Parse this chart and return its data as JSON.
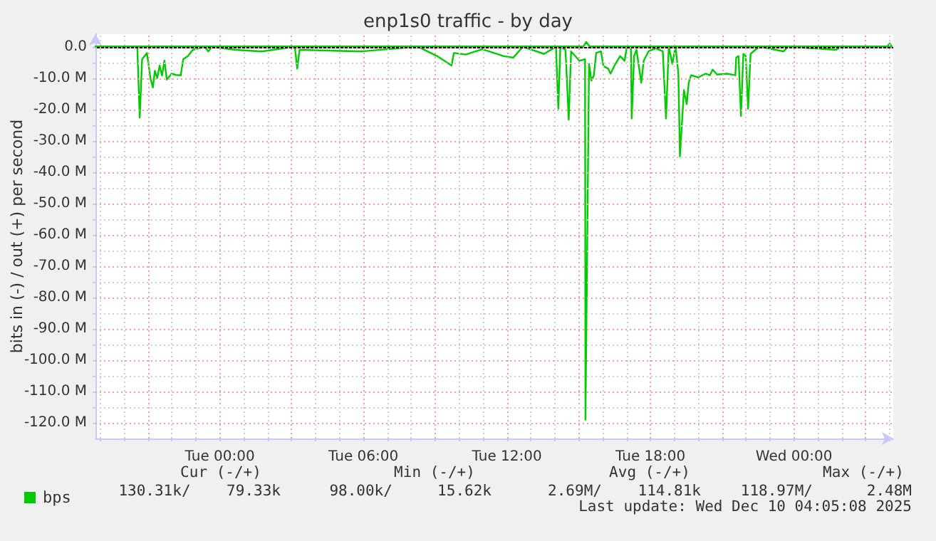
{
  "chart_data": {
    "type": "line",
    "title": "enp1s0 traffic - by day",
    "ylabel": "bits in (-) / out (+) per second",
    "x": [
      "2025-12-08T18:48",
      "2025-12-08T20:00",
      "2025-12-08T20:33",
      "2025-12-08T20:39",
      "2025-12-08T20:45",
      "2025-12-08T20:57",
      "2025-12-08T21:06",
      "2025-12-08T21:12",
      "2025-12-08T21:17",
      "2025-12-08T21:23",
      "2025-12-08T21:29",
      "2025-12-08T21:35",
      "2025-12-08T21:41",
      "2025-12-08T21:47",
      "2025-12-08T21:59",
      "2025-12-08T22:10",
      "2025-12-08T22:22",
      "2025-12-08T22:28",
      "2025-12-08T22:40",
      "2025-12-08T22:52",
      "2025-12-08T23:22",
      "2025-12-08T23:31",
      "2025-12-08T23:40",
      "2025-12-09T00:39",
      "2025-12-09T01:45",
      "2025-12-09T03:08",
      "2025-12-09T03:14",
      "2025-12-09T03:20",
      "2025-12-09T05:55",
      "2025-12-09T08:17",
      "2025-12-09T09:05",
      "2025-12-09T09:41",
      "2025-12-09T09:47",
      "2025-12-09T10:17",
      "2025-12-09T10:58",
      "2025-12-09T11:40",
      "2025-12-09T11:52",
      "2025-12-09T12:16",
      "2025-12-09T12:40",
      "2025-12-09T13:33",
      "2025-12-09T14:03",
      "2025-12-09T14:09",
      "2025-12-09T14:14",
      "2025-12-09T14:27",
      "2025-12-09T14:35",
      "2025-12-09T14:41",
      "2025-12-09T15:02",
      "2025-12-09T15:16",
      "2025-12-09T15:17",
      "2025-12-09T15:26",
      "2025-12-09T15:32",
      "2025-12-09T15:38",
      "2025-12-09T15:44",
      "2025-12-09T15:56",
      "2025-12-09T16:02",
      "2025-12-09T16:14",
      "2025-12-09T16:20",
      "2025-12-09T16:32",
      "2025-12-09T16:44",
      "2025-12-09T16:55",
      "2025-12-09T17:01",
      "2025-12-09T17:11",
      "2025-12-09T17:13",
      "2025-12-09T17:19",
      "2025-12-09T17:25",
      "2025-12-09T17:37",
      "2025-12-09T17:43",
      "2025-12-09T17:55",
      "2025-12-09T18:13",
      "2025-12-09T18:31",
      "2025-12-09T18:39",
      "2025-12-09T18:46",
      "2025-12-09T18:55",
      "2025-12-09T19:03",
      "2025-12-09T19:10",
      "2025-12-09T19:14",
      "2025-12-09T19:24",
      "2025-12-09T19:31",
      "2025-12-09T19:36",
      "2025-12-09T19:42",
      "2025-12-09T20:00",
      "2025-12-09T20:18",
      "2025-12-09T20:29",
      "2025-12-09T20:36",
      "2025-12-09T20:47",
      "2025-12-09T21:11",
      "2025-12-09T21:33",
      "2025-12-09T21:35",
      "2025-12-09T21:41",
      "2025-12-09T21:47",
      "2025-12-09T21:53",
      "2025-12-09T21:59",
      "2025-12-09T22:05",
      "2025-12-09T22:11",
      "2025-12-09T22:23",
      "2025-12-09T22:35",
      "2025-12-09T23:34",
      "2025-12-09T23:45",
      "2025-12-10T01:46",
      "2025-12-10T01:57",
      "2025-12-10T04:05"
    ],
    "series": [
      {
        "name": "bps",
        "color": "#00cc00",
        "values": [
          0,
          -0.3,
          0,
          -22.6,
          -4,
          -2,
          -10,
          -13,
          -7.7,
          -10,
          -6,
          -9.2,
          -4.4,
          -10.5,
          -8.6,
          -9,
          -9.1,
          -4,
          -3,
          -1,
          0,
          -1.5,
          0,
          -1,
          -1.5,
          0,
          -7,
          -1,
          -1.5,
          0,
          -3,
          -6,
          -2,
          -2.5,
          -0.8,
          -2.5,
          -3,
          -3.5,
          0,
          -2.3,
          0,
          -19.8,
          0,
          -1,
          -23.3,
          -1.5,
          -4.5,
          -4,
          -119,
          -5.5,
          -10.8,
          -9.2,
          -2,
          -1.5,
          -6.2,
          -7,
          -8.6,
          -5.5,
          -3,
          -4.5,
          0,
          -0.5,
          -22.9,
          -3,
          -1,
          -11.5,
          -4.5,
          -1.5,
          -0.5,
          -1.5,
          -22.9,
          0,
          -5.5,
          0,
          -8.6,
          -35,
          -13.8,
          -18.3,
          -11.5,
          -9.1,
          -9.8,
          -8.6,
          -9.1,
          -7.3,
          -8.9,
          -8.6,
          -9.1,
          -3.5,
          -3,
          -22.1,
          -2.3,
          -3,
          -19.8,
          -2.3,
          -1,
          0,
          -1.5,
          0,
          -1,
          0,
          0
        ]
      },
      {
        "color": "#00cc00",
        "x": [
          "2025-12-08T18:48",
          "2025-12-09T15:12",
          "2025-12-09T15:19",
          "2025-12-09T15:27",
          "2025-12-10T03:54",
          "2025-12-10T04:00",
          "2025-12-10T04:05"
        ],
        "values": [
          0.1,
          0.1,
          1.5,
          0.1,
          0.1,
          1.0,
          0.1
        ]
      }
    ],
    "xlim": [
      "2025-12-08T18:48",
      "2025-12-10T04:09"
    ],
    "xticks": [
      {
        "value": "2025-12-08T19:00",
        "label": null
      },
      {
        "value": "2025-12-08T20:00",
        "label": null
      },
      {
        "value": "2025-12-08T21:00",
        "label": null
      },
      {
        "value": "2025-12-08T22:00",
        "label": null
      },
      {
        "value": "2025-12-08T23:00",
        "label": null
      },
      {
        "value": "2025-12-09T00:00",
        "label": "Tue 00:00"
      },
      {
        "value": "2025-12-09T01:00",
        "label": null
      },
      {
        "value": "2025-12-09T02:00",
        "label": null
      },
      {
        "value": "2025-12-09T03:00",
        "label": null
      },
      {
        "value": "2025-12-09T04:00",
        "label": null
      },
      {
        "value": "2025-12-09T05:00",
        "label": null
      },
      {
        "value": "2025-12-09T06:00",
        "label": "Tue 06:00"
      },
      {
        "value": "2025-12-09T07:00",
        "label": null
      },
      {
        "value": "2025-12-09T08:00",
        "label": null
      },
      {
        "value": "2025-12-09T09:00",
        "label": null
      },
      {
        "value": "2025-12-09T10:00",
        "label": null
      },
      {
        "value": "2025-12-09T11:00",
        "label": null
      },
      {
        "value": "2025-12-09T12:00",
        "label": "Tue 12:00"
      },
      {
        "value": "2025-12-09T13:00",
        "label": null
      },
      {
        "value": "2025-12-09T14:00",
        "label": null
      },
      {
        "value": "2025-12-09T15:00",
        "label": null
      },
      {
        "value": "2025-12-09T16:00",
        "label": null
      },
      {
        "value": "2025-12-09T17:00",
        "label": null
      },
      {
        "value": "2025-12-09T18:00",
        "label": "Tue 18:00"
      },
      {
        "value": "2025-12-09T19:00",
        "label": null
      },
      {
        "value": "2025-12-09T20:00",
        "label": null
      },
      {
        "value": "2025-12-09T21:00",
        "label": null
      },
      {
        "value": "2025-12-09T22:00",
        "label": null
      },
      {
        "value": "2025-12-09T23:00",
        "label": null
      },
      {
        "value": "2025-12-10T00:00",
        "label": "Wed 00:00"
      },
      {
        "value": "2025-12-10T01:00",
        "label": null
      },
      {
        "value": "2025-12-10T02:00",
        "label": null
      },
      {
        "value": "2025-12-10T03:00",
        "label": null
      },
      {
        "value": "2025-12-10T04:00",
        "label": null
      }
    ],
    "ylim": [
      -125,
      4
    ],
    "yticks": [
      {
        "value": 0,
        "label": "0.0"
      },
      {
        "value": -5,
        "label": null
      },
      {
        "value": -10,
        "label": "-10.0 M"
      },
      {
        "value": -15,
        "label": null
      },
      {
        "value": -20,
        "label": "-20.0 M"
      },
      {
        "value": -25,
        "label": null
      },
      {
        "value": -30,
        "label": "-30.0 M"
      },
      {
        "value": -35,
        "label": null
      },
      {
        "value": -40,
        "label": "-40.0 M"
      },
      {
        "value": -45,
        "label": null
      },
      {
        "value": -50,
        "label": "-50.0 M"
      },
      {
        "value": -55,
        "label": null
      },
      {
        "value": -60,
        "label": "-60.0 M"
      },
      {
        "value": -65,
        "label": null
      },
      {
        "value": -70,
        "label": "-70.0 M"
      },
      {
        "value": -75,
        "label": null
      },
      {
        "value": -80,
        "label": "-80.0 M"
      },
      {
        "value": -85,
        "label": null
      },
      {
        "value": -90,
        "label": "-90.0 M"
      },
      {
        "value": -95,
        "label": null
      },
      {
        "value": -100,
        "label": "-100.0 M"
      },
      {
        "value": -105,
        "label": null
      },
      {
        "value": -110,
        "label": "-110.0 M"
      },
      {
        "value": -115,
        "label": null
      },
      {
        "value": -120,
        "label": "-120.0 M"
      }
    ],
    "ref_lines": [
      {
        "axis": "y",
        "value": 0,
        "color": "#000000"
      }
    ],
    "grid": true,
    "legend": "bottom left",
    "marker": "none",
    "line_style": "solid",
    "annotations": [
      "Cur (-/+)",
      "Min (-/+)",
      "Avg (-/+)",
      "Max (-/+)",
      "130.31k/    79.33k",
      "98.00k/     15.62k",
      "2.69M/    114.81k",
      "118.97M/      2.48M",
      "Last update: Wed Dec 10 04:05:08 2025"
    ]
  }
}
